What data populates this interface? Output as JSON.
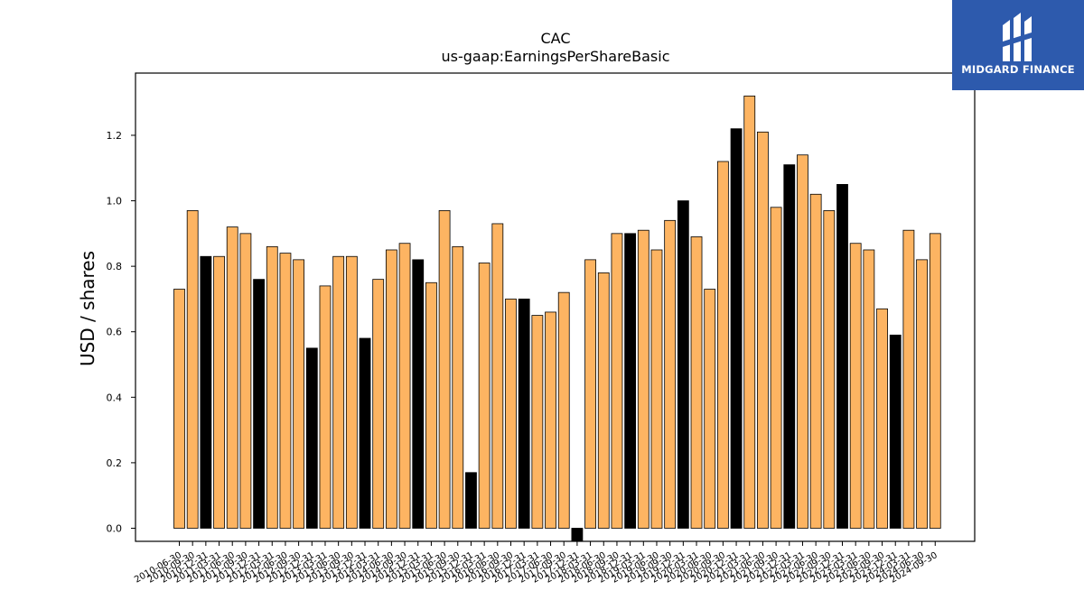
{
  "brand": {
    "name": "MIDGARD FINANCE",
    "color": "#2d5aad"
  },
  "colors": {
    "orange": "#fdb462",
    "black": "#000000"
  },
  "chart_data": {
    "type": "bar",
    "title": "CAC",
    "subtitle": "us-gaap:EarningsPerShareBasic",
    "ylabel": "USD / shares",
    "xlabel": "",
    "ylim": [
      -0.04,
      1.39
    ],
    "yticks": [
      0.0,
      0.2,
      0.4,
      0.6,
      0.8,
      1.0,
      1.2
    ],
    "grid": false,
    "categories": [
      "2010-06-30",
      "2010-09-30",
      "2010-12-31",
      "2011-03-31",
      "2011-06-30",
      "2011-09-30",
      "2011-12-31",
      "2012-03-31",
      "2012-06-30",
      "2012-09-30",
      "2012-12-31",
      "2013-03-31",
      "2013-06-30",
      "2013-09-30",
      "2013-12-31",
      "2014-03-31",
      "2014-06-30",
      "2014-09-30",
      "2014-12-31",
      "2015-03-31",
      "2015-06-30",
      "2015-09-30",
      "2015-12-31",
      "2016-03-31",
      "2016-06-30",
      "2016-09-30",
      "2016-12-31",
      "2017-03-31",
      "2017-06-30",
      "2017-09-30",
      "2017-12-31",
      "2018-03-31",
      "2018-06-30",
      "2018-09-30",
      "2018-12-31",
      "2019-03-31",
      "2019-06-30",
      "2019-09-30",
      "2019-12-31",
      "2020-03-31",
      "2020-06-30",
      "2020-09-30",
      "2020-12-31",
      "2021-03-31",
      "2021-06-30",
      "2021-09-30",
      "2021-12-31",
      "2022-03-31",
      "2022-06-30",
      "2022-09-30",
      "2022-12-31",
      "2023-03-31",
      "2023-06-30",
      "2023-09-30",
      "2023-12-31",
      "2024-03-31",
      "2024-06-30",
      "2024-09-30"
    ],
    "values": [
      0.73,
      0.97,
      0.83,
      0.83,
      0.92,
      0.9,
      0.76,
      0.86,
      0.84,
      0.82,
      0.55,
      0.74,
      0.83,
      0.83,
      0.58,
      0.76,
      0.85,
      0.87,
      0.82,
      0.75,
      0.97,
      0.86,
      0.17,
      0.81,
      0.93,
      0.7,
      0.7,
      0.65,
      0.66,
      0.72,
      -0.04,
      0.82,
      0.78,
      0.9,
      0.9,
      0.91,
      0.85,
      0.94,
      1.0,
      0.89,
      0.73,
      1.12,
      1.22,
      1.32,
      1.21,
      0.98,
      1.11,
      1.14,
      1.02,
      0.97,
      1.05,
      0.87,
      0.85,
      0.67,
      0.59,
      0.91,
      0.82,
      0.9
    ],
    "highlight": [
      "2010-12-31",
      "2011-12-31",
      "2012-12-31",
      "2013-12-31",
      "2014-12-31",
      "2015-12-31",
      "2016-12-31",
      "2017-12-31",
      "2018-12-31",
      "2019-12-31",
      "2020-12-31",
      "2021-12-31",
      "2022-12-31",
      "2023-12-31"
    ]
  }
}
